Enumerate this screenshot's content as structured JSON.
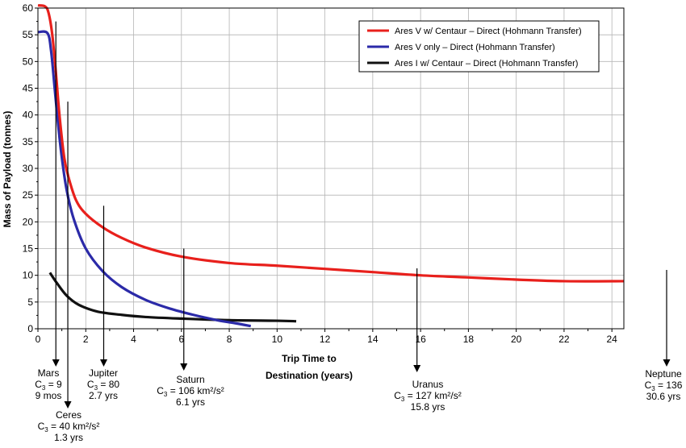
{
  "chart_data": {
    "type": "line",
    "xlabel_line1": "Trip Time to",
    "xlabel_line2": "Destination (years)",
    "ylabel": "Mass of Payload (tonnes)",
    "xlim": [
      0,
      24.5
    ],
    "ylim": [
      0,
      60
    ],
    "x_ticks": [
      0,
      2,
      4,
      6,
      8,
      10,
      12,
      14,
      16,
      18,
      20,
      22,
      24
    ],
    "y_ticks": [
      0,
      5,
      10,
      15,
      20,
      25,
      30,
      35,
      40,
      45,
      50,
      55,
      60
    ],
    "grid": true,
    "legend_position": "top-right",
    "series": [
      {
        "name": "Ares V w/ Centaur – Direct (Hohmann Transfer)",
        "color": "#e8201c",
        "x": [
          0,
          0.3,
          0.45,
          0.6,
          0.75,
          0.9,
          1.1,
          1.3,
          1.6,
          2.0,
          2.7,
          3.5,
          4.5,
          6.0,
          8.0,
          10.0,
          12.0,
          14.0,
          16.0,
          18.0,
          20.0,
          22.0,
          24.5
        ],
        "y": [
          60.5,
          60.3,
          59,
          55,
          48,
          40,
          32,
          28,
          24,
          21.5,
          19,
          17,
          15.2,
          13.5,
          12.3,
          11.8,
          11.2,
          10.6,
          10.0,
          9.6,
          9.2,
          8.9,
          8.9
        ]
      },
      {
        "name": "Ares V only – Direct (Hohmann Transfer)",
        "color": "#2b2aa8",
        "x": [
          0,
          0.4,
          0.55,
          0.7,
          0.85,
          1.0,
          1.2,
          1.5,
          2.0,
          2.7,
          3.5,
          4.5,
          5.5,
          6.5,
          7.5,
          8.3,
          8.9
        ],
        "y": [
          55.5,
          55.3,
          52,
          45,
          38,
          32,
          26,
          20.5,
          15,
          10.8,
          7.8,
          5.4,
          3.8,
          2.6,
          1.6,
          1.0,
          0.5
        ]
      },
      {
        "name": "Ares I w/ Centaur – Direct (Hohmann Transfer)",
        "color": "#111111",
        "x": [
          0.5,
          0.8,
          1.2,
          1.7,
          2.5,
          3.5,
          4.5,
          6.0,
          8.0,
          10.0,
          10.8
        ],
        "y": [
          10.5,
          8.5,
          6.2,
          4.5,
          3.2,
          2.6,
          2.2,
          1.9,
          1.6,
          1.5,
          1.4
        ]
      }
    ],
    "destinations": [
      {
        "name": "Mars",
        "c3_label": "C",
        "c3_sub": "3",
        "c3_value": " = 9",
        "time": "9 mos",
        "x": 0.75,
        "line_top_y": 57.5
      },
      {
        "name": "Ceres",
        "c3_label": "C",
        "c3_sub": "3",
        "c3_value": " = 40 km²/s²",
        "time": "1.3 yrs",
        "x": 1.25,
        "line_top_y": 42.5
      },
      {
        "name": "Jupiter",
        "c3_label": "C",
        "c3_sub": "3",
        "c3_value": " = 80",
        "time": "2.7 yrs",
        "x": 2.75,
        "line_top_y": 23
      },
      {
        "name": "Saturn",
        "c3_label": "C",
        "c3_sub": "3",
        "c3_value": " = 106 km²/s²",
        "time": "6.1 yrs",
        "x": 6.1,
        "line_top_y": 15
      },
      {
        "name": "Uranus",
        "c3_label": "C",
        "c3_sub": "3",
        "c3_value": " = 127 km²/s²",
        "time": "15.8 yrs",
        "x": 15.85,
        "line_top_y": 11.3
      },
      {
        "name": "Neptune",
        "c3_label": "C",
        "c3_sub": "3",
        "c3_value": " = 136",
        "time": "30.6 yrs",
        "x": null,
        "line_top_y": null
      }
    ]
  }
}
